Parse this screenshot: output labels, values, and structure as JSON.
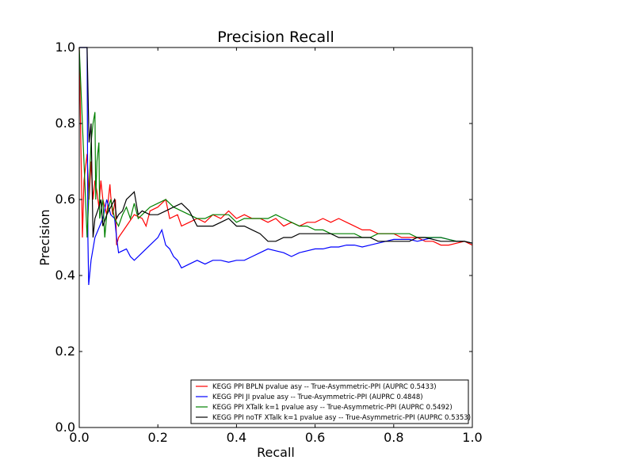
{
  "chart_data": {
    "type": "line",
    "title": "Precision Recall",
    "xlabel": "Recall",
    "ylabel": "Precision",
    "xlim": [
      0.0,
      1.0
    ],
    "ylim": [
      0.0,
      1.0
    ],
    "xticks": [
      "0.0",
      "0.2",
      "0.4",
      "0.6",
      "0.8",
      "1.0"
    ],
    "yticks": [
      "0.0",
      "0.2",
      "0.4",
      "0.6",
      "0.8",
      "1.0"
    ],
    "grid": false,
    "legend_position": "lower-right",
    "series": [
      {
        "name": "KEGG PPI BPLN pvalue asy -- True-Asymmetric-PPI (AUPRC 0.5433)",
        "color": "#ff0000",
        "points": [
          [
            0.0,
            1.0
          ],
          [
            0.008,
            0.5
          ],
          [
            0.012,
            0.65
          ],
          [
            0.02,
            0.72
          ],
          [
            0.025,
            0.6
          ],
          [
            0.03,
            0.7
          ],
          [
            0.035,
            0.6
          ],
          [
            0.04,
            0.65
          ],
          [
            0.045,
            0.62
          ],
          [
            0.05,
            0.58
          ],
          [
            0.055,
            0.65
          ],
          [
            0.06,
            0.6
          ],
          [
            0.07,
            0.56
          ],
          [
            0.078,
            0.64
          ],
          [
            0.08,
            0.61
          ],
          [
            0.085,
            0.56
          ],
          [
            0.092,
            0.6
          ],
          [
            0.095,
            0.48
          ],
          [
            0.1,
            0.5
          ],
          [
            0.12,
            0.53
          ],
          [
            0.14,
            0.56
          ],
          [
            0.16,
            0.55
          ],
          [
            0.17,
            0.53
          ],
          [
            0.18,
            0.57
          ],
          [
            0.2,
            0.58
          ],
          [
            0.22,
            0.6
          ],
          [
            0.23,
            0.55
          ],
          [
            0.25,
            0.56
          ],
          [
            0.26,
            0.53
          ],
          [
            0.28,
            0.54
          ],
          [
            0.3,
            0.55
          ],
          [
            0.32,
            0.54
          ],
          [
            0.34,
            0.56
          ],
          [
            0.36,
            0.55
          ],
          [
            0.38,
            0.57
          ],
          [
            0.4,
            0.55
          ],
          [
            0.42,
            0.56
          ],
          [
            0.44,
            0.55
          ],
          [
            0.46,
            0.55
          ],
          [
            0.48,
            0.54
          ],
          [
            0.5,
            0.55
          ],
          [
            0.52,
            0.53
          ],
          [
            0.54,
            0.54
          ],
          [
            0.56,
            0.53
          ],
          [
            0.58,
            0.54
          ],
          [
            0.6,
            0.54
          ],
          [
            0.62,
            0.55
          ],
          [
            0.64,
            0.54
          ],
          [
            0.66,
            0.55
          ],
          [
            0.68,
            0.54
          ],
          [
            0.7,
            0.53
          ],
          [
            0.72,
            0.52
          ],
          [
            0.74,
            0.52
          ],
          [
            0.76,
            0.51
          ],
          [
            0.78,
            0.51
          ],
          [
            0.8,
            0.51
          ],
          [
            0.82,
            0.5
          ],
          [
            0.84,
            0.5
          ],
          [
            0.86,
            0.5
          ],
          [
            0.88,
            0.49
          ],
          [
            0.9,
            0.49
          ],
          [
            0.92,
            0.48
          ],
          [
            0.94,
            0.48
          ],
          [
            0.96,
            0.485
          ],
          [
            0.98,
            0.49
          ],
          [
            1.0,
            0.48
          ]
        ]
      },
      {
        "name": "KEGG PPI JI pvalue asy -- True-Asymmetric-PPI (AUPRC 0.4848)",
        "color": "#0000ff",
        "points": [
          [
            0.0,
            1.0
          ],
          [
            0.02,
            1.0
          ],
          [
            0.022,
            0.5
          ],
          [
            0.024,
            0.375
          ],
          [
            0.03,
            0.44
          ],
          [
            0.04,
            0.5
          ],
          [
            0.06,
            0.55
          ],
          [
            0.07,
            0.6
          ],
          [
            0.08,
            0.56
          ],
          [
            0.09,
            0.55
          ],
          [
            0.095,
            0.5
          ],
          [
            0.1,
            0.46
          ],
          [
            0.12,
            0.47
          ],
          [
            0.13,
            0.45
          ],
          [
            0.14,
            0.44
          ],
          [
            0.16,
            0.46
          ],
          [
            0.18,
            0.48
          ],
          [
            0.2,
            0.5
          ],
          [
            0.21,
            0.52
          ],
          [
            0.22,
            0.48
          ],
          [
            0.23,
            0.47
          ],
          [
            0.24,
            0.45
          ],
          [
            0.25,
            0.44
          ],
          [
            0.26,
            0.42
          ],
          [
            0.28,
            0.43
          ],
          [
            0.3,
            0.44
          ],
          [
            0.32,
            0.43
          ],
          [
            0.34,
            0.44
          ],
          [
            0.36,
            0.44
          ],
          [
            0.38,
            0.435
          ],
          [
            0.4,
            0.44
          ],
          [
            0.42,
            0.44
          ],
          [
            0.44,
            0.45
          ],
          [
            0.46,
            0.46
          ],
          [
            0.48,
            0.47
          ],
          [
            0.5,
            0.465
          ],
          [
            0.52,
            0.46
          ],
          [
            0.54,
            0.45
          ],
          [
            0.56,
            0.46
          ],
          [
            0.58,
            0.465
          ],
          [
            0.6,
            0.47
          ],
          [
            0.62,
            0.47
          ],
          [
            0.64,
            0.475
          ],
          [
            0.66,
            0.475
          ],
          [
            0.68,
            0.48
          ],
          [
            0.7,
            0.48
          ],
          [
            0.72,
            0.475
          ],
          [
            0.74,
            0.48
          ],
          [
            0.76,
            0.485
          ],
          [
            0.78,
            0.49
          ],
          [
            0.8,
            0.495
          ],
          [
            0.82,
            0.495
          ],
          [
            0.84,
            0.495
          ],
          [
            0.86,
            0.49
          ],
          [
            0.88,
            0.495
          ],
          [
            0.9,
            0.5
          ],
          [
            0.92,
            0.5
          ],
          [
            0.94,
            0.495
          ],
          [
            0.96,
            0.49
          ],
          [
            0.98,
            0.49
          ],
          [
            1.0,
            0.485
          ]
        ]
      },
      {
        "name": "KEGG PPI XTalk k=1 pvalue asy -- True-Asymmetric-PPI (AUPRC 0.5492)",
        "color": "#008000",
        "points": [
          [
            0.0,
            1.0
          ],
          [
            0.02,
            0.5
          ],
          [
            0.03,
            0.75
          ],
          [
            0.035,
            0.8
          ],
          [
            0.04,
            0.83
          ],
          [
            0.042,
            0.6
          ],
          [
            0.045,
            0.7
          ],
          [
            0.05,
            0.75
          ],
          [
            0.052,
            0.55
          ],
          [
            0.06,
            0.6
          ],
          [
            0.065,
            0.5
          ],
          [
            0.07,
            0.56
          ],
          [
            0.08,
            0.6
          ],
          [
            0.09,
            0.55
          ],
          [
            0.1,
            0.53
          ],
          [
            0.11,
            0.56
          ],
          [
            0.12,
            0.58
          ],
          [
            0.13,
            0.55
          ],
          [
            0.14,
            0.59
          ],
          [
            0.15,
            0.55
          ],
          [
            0.16,
            0.56
          ],
          [
            0.18,
            0.58
          ],
          [
            0.2,
            0.59
          ],
          [
            0.22,
            0.6
          ],
          [
            0.24,
            0.58
          ],
          [
            0.26,
            0.57
          ],
          [
            0.28,
            0.56
          ],
          [
            0.3,
            0.55
          ],
          [
            0.32,
            0.55
          ],
          [
            0.34,
            0.56
          ],
          [
            0.36,
            0.56
          ],
          [
            0.38,
            0.56
          ],
          [
            0.4,
            0.54
          ],
          [
            0.42,
            0.55
          ],
          [
            0.44,
            0.55
          ],
          [
            0.46,
            0.55
          ],
          [
            0.48,
            0.55
          ],
          [
            0.5,
            0.56
          ],
          [
            0.52,
            0.55
          ],
          [
            0.54,
            0.54
          ],
          [
            0.56,
            0.53
          ],
          [
            0.58,
            0.53
          ],
          [
            0.6,
            0.52
          ],
          [
            0.62,
            0.52
          ],
          [
            0.64,
            0.51
          ],
          [
            0.66,
            0.51
          ],
          [
            0.68,
            0.51
          ],
          [
            0.7,
            0.51
          ],
          [
            0.72,
            0.5
          ],
          [
            0.74,
            0.5
          ],
          [
            0.76,
            0.51
          ],
          [
            0.78,
            0.51
          ],
          [
            0.8,
            0.51
          ],
          [
            0.82,
            0.51
          ],
          [
            0.84,
            0.51
          ],
          [
            0.86,
            0.5
          ],
          [
            0.88,
            0.5
          ],
          [
            0.9,
            0.5
          ],
          [
            0.92,
            0.5
          ],
          [
            0.94,
            0.495
          ],
          [
            0.96,
            0.49
          ],
          [
            0.98,
            0.49
          ],
          [
            1.0,
            0.485
          ]
        ]
      },
      {
        "name": "KEGG PPI noTF XTalk k=1 pvalue asy -- True-Asymmetric-PPI (AUPRC 0.5353)",
        "color": "#000000",
        "points": [
          [
            0.0,
            1.0
          ],
          [
            0.02,
            1.0
          ],
          [
            0.025,
            0.75
          ],
          [
            0.03,
            0.8
          ],
          [
            0.035,
            0.5
          ],
          [
            0.04,
            0.55
          ],
          [
            0.05,
            0.58
          ],
          [
            0.055,
            0.6
          ],
          [
            0.06,
            0.53
          ],
          [
            0.07,
            0.56
          ],
          [
            0.08,
            0.58
          ],
          [
            0.09,
            0.6
          ],
          [
            0.095,
            0.55
          ],
          [
            0.1,
            0.56
          ],
          [
            0.11,
            0.57
          ],
          [
            0.12,
            0.6
          ],
          [
            0.13,
            0.61
          ],
          [
            0.14,
            0.62
          ],
          [
            0.15,
            0.56
          ],
          [
            0.16,
            0.57
          ],
          [
            0.18,
            0.56
          ],
          [
            0.2,
            0.56
          ],
          [
            0.22,
            0.57
          ],
          [
            0.24,
            0.58
          ],
          [
            0.26,
            0.59
          ],
          [
            0.28,
            0.57
          ],
          [
            0.3,
            0.53
          ],
          [
            0.32,
            0.53
          ],
          [
            0.34,
            0.53
          ],
          [
            0.36,
            0.54
          ],
          [
            0.38,
            0.55
          ],
          [
            0.4,
            0.53
          ],
          [
            0.42,
            0.53
          ],
          [
            0.44,
            0.52
          ],
          [
            0.46,
            0.51
          ],
          [
            0.48,
            0.49
          ],
          [
            0.5,
            0.49
          ],
          [
            0.52,
            0.5
          ],
          [
            0.54,
            0.5
          ],
          [
            0.56,
            0.51
          ],
          [
            0.58,
            0.51
          ],
          [
            0.6,
            0.51
          ],
          [
            0.62,
            0.51
          ],
          [
            0.64,
            0.51
          ],
          [
            0.66,
            0.5
          ],
          [
            0.68,
            0.5
          ],
          [
            0.7,
            0.5
          ],
          [
            0.72,
            0.5
          ],
          [
            0.74,
            0.5
          ],
          [
            0.76,
            0.49
          ],
          [
            0.78,
            0.49
          ],
          [
            0.8,
            0.49
          ],
          [
            0.82,
            0.49
          ],
          [
            0.84,
            0.49
          ],
          [
            0.86,
            0.5
          ],
          [
            0.88,
            0.5
          ],
          [
            0.9,
            0.495
          ],
          [
            0.92,
            0.49
          ],
          [
            0.94,
            0.49
          ],
          [
            0.96,
            0.49
          ],
          [
            0.98,
            0.49
          ],
          [
            1.0,
            0.485
          ]
        ]
      }
    ]
  }
}
